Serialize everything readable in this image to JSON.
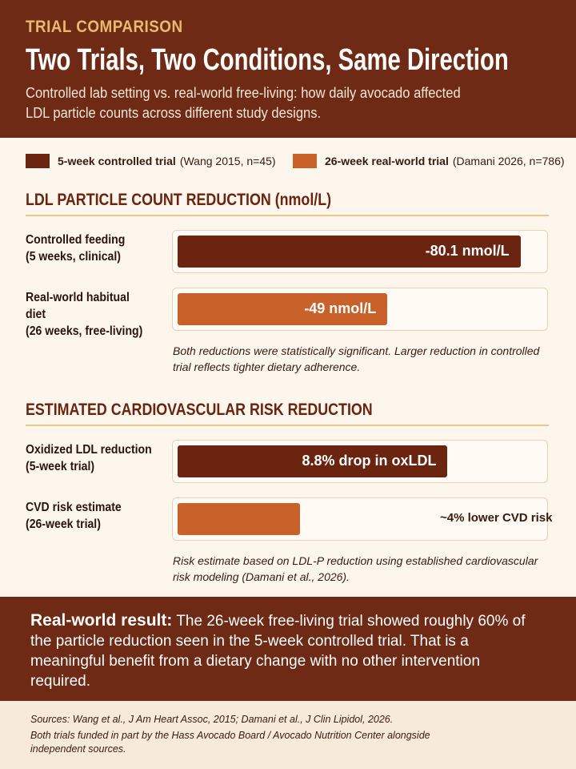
{
  "header": {
    "kicker": "TRIAL COMPARISON",
    "title": "Two Trials, Two Conditions, Same Direction",
    "subtitle": "Controlled lab setting vs. real-world free-living: how daily avocado affected LDL particle counts across different study designs."
  },
  "legend": [
    {
      "label": "5-week controlled trial",
      "detail": "(Wang 2015, n=45)",
      "color": "#6b2410"
    },
    {
      "label": "26-week real-world trial",
      "detail": "(Damani 2026, n=786)",
      "color": "#c8622a"
    }
  ],
  "chart_data": [
    {
      "type": "bar",
      "orientation": "horizontal",
      "title": "LDL PARTICLE COUNT REDUCTION (nmol/L)",
      "categories": [
        "Controlled feeding\n(5 weeks, clinical)",
        "Real-world habitual diet\n(26 weeks, free-living)"
      ],
      "values": [
        -80.1,
        -49
      ],
      "value_labels": [
        "-80.1 nmol/L",
        "-49 nmol/L"
      ],
      "colors": [
        "#6b2410",
        "#c8622a"
      ],
      "note": "Both reductions were statistically significant. Larger reduction in controlled trial reflects tighter dietary adherence."
    },
    {
      "type": "bar",
      "orientation": "horizontal",
      "title": "ESTIMATED CARDIOVASCULAR RISK REDUCTION",
      "categories": [
        "Oxidized LDL reduction\n(5-week trial)",
        "CVD risk estimate\n(26-week trial)"
      ],
      "values": [
        8.8,
        4
      ],
      "value_labels": [
        "8.8% drop in oxLDL",
        "~4% lower CVD risk"
      ],
      "colors": [
        "#6b2410",
        "#c8622a"
      ],
      "note": "Risk estimate based on LDL-P reduction using established cardiovascular risk modeling (Damani et al., 2026)."
    }
  ],
  "callout": {
    "lead": "Real-world result:",
    "text": "The 26-week free-living trial showed roughly 60% of the particle reduction seen in the 5-week controlled trial. That is a meaningful benefit from a dietary change with no other intervention required."
  },
  "sources": [
    "Sources: Wang et al., J Am Heart Assoc, 2015; Damani et al., J Clin Lipidol, 2026.",
    "Both trials funded in part by the Hass Avocado Board / Avocado Nutrition Center alongside independent sources."
  ]
}
